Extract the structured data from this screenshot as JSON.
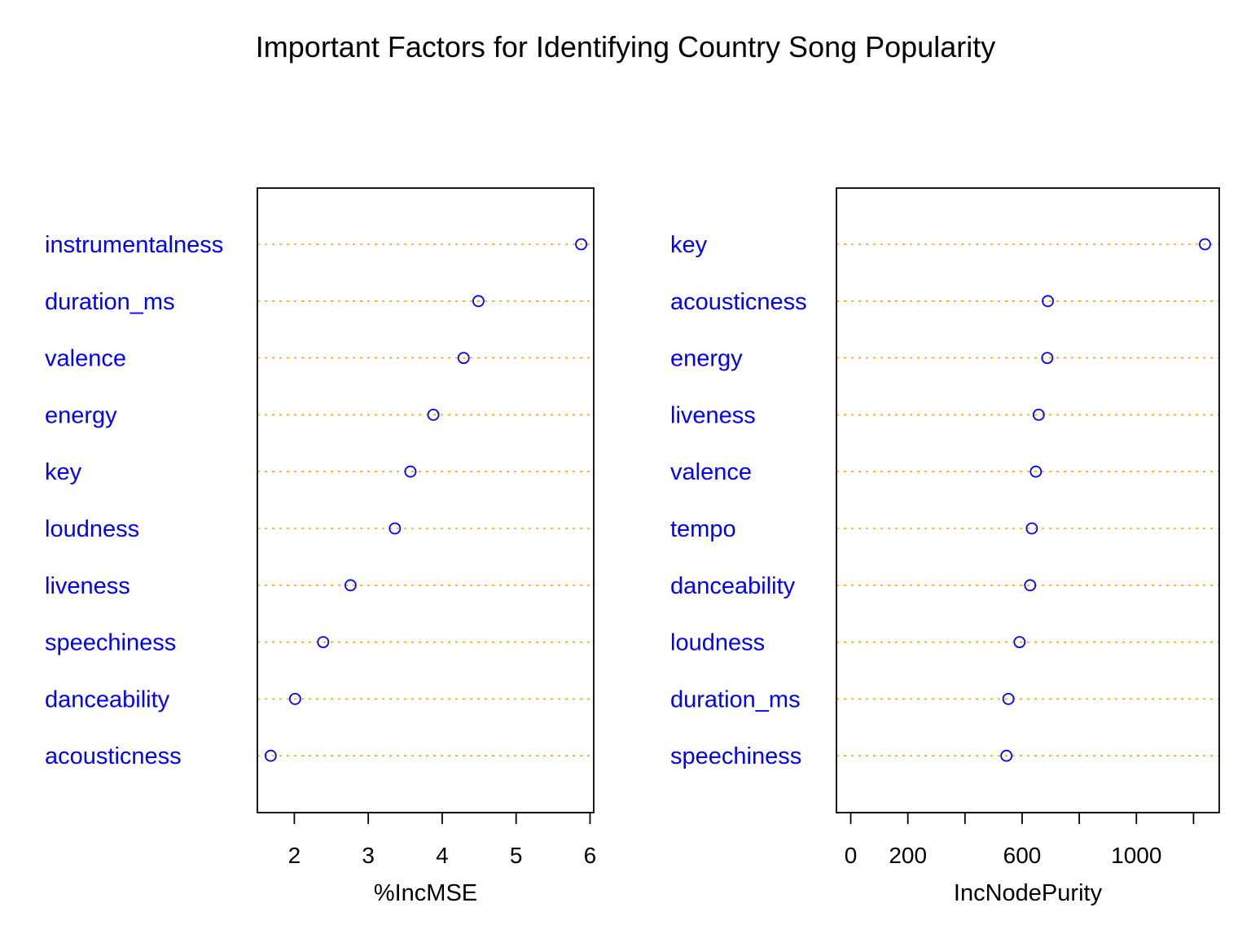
{
  "chart_data": {
    "type": "scatter",
    "subtype": "dotchart",
    "title": "Important Factors for Identifying Country Song Popularity",
    "point_color": "#0000ff",
    "label_color": "#0000ff",
    "guide_line_color": "#ffa500",
    "panels": [
      {
        "xlabel": "%IncMSE",
        "ticks": [
          2,
          3,
          4,
          5,
          6
        ],
        "tick_labels": [
          "2",
          "3",
          "4",
          "5",
          "6"
        ],
        "xlim": [
          1.5,
          6.05
        ],
        "items": [
          {
            "label": "instrumentalness",
            "value": 5.88
          },
          {
            "label": "duration_ms",
            "value": 4.49
          },
          {
            "label": "valence",
            "value": 4.29
          },
          {
            "label": "energy",
            "value": 3.88
          },
          {
            "label": "key",
            "value": 3.57
          },
          {
            "label": "loudness",
            "value": 3.36
          },
          {
            "label": "liveness",
            "value": 2.76
          },
          {
            "label": "speechiness",
            "value": 2.39
          },
          {
            "label": "danceability",
            "value": 2.01
          },
          {
            "label": "acousticness",
            "value": 1.68
          }
        ]
      },
      {
        "xlabel": "IncNodePurity",
        "ticks": [
          0,
          200,
          400,
          600,
          800,
          1000,
          1200
        ],
        "tick_labels": [
          "0",
          "200",
          "",
          "600",
          "",
          "1000",
          ""
        ],
        "xlim": [
          -50,
          1290
        ],
        "items": [
          {
            "label": "key",
            "value": 1240
          },
          {
            "label": "acousticness",
            "value": 690
          },
          {
            "label": "energy",
            "value": 688
          },
          {
            "label": "liveness",
            "value": 658
          },
          {
            "label": "valence",
            "value": 648
          },
          {
            "label": "tempo",
            "value": 634
          },
          {
            "label": "danceability",
            "value": 628
          },
          {
            "label": "loudness",
            "value": 591
          },
          {
            "label": "duration_ms",
            "value": 552
          },
          {
            "label": "speechiness",
            "value": 545
          }
        ]
      }
    ]
  }
}
